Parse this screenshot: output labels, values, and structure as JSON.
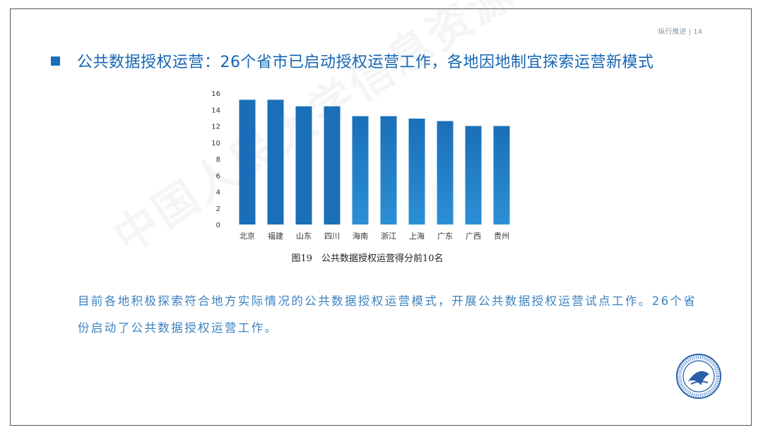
{
  "header": {
    "tag": "纵行推进 | 14"
  },
  "title": "公共数据授权运营：26个省市已启动授权运营工作，各地因地制宜探索运营新模式",
  "caption": "图19　公共数据授权运营得分前10名",
  "body_text": "目前各地积极探索符合地方实际情况的公共数据授权运营模式，开展公共数据授权运营试点工作。26个省份启动了公共数据授权运营工作。",
  "watermark": "中国人民大学信息资源管理学院",
  "colors": {
    "bar_top": "#1a6fb8",
    "bar_bottom": "#2c8fd6",
    "title": "#1565b3",
    "body": "#3b82c0"
  },
  "chart_data": {
    "type": "bar",
    "categories": [
      "北京",
      "福建",
      "山东",
      "四川",
      "海南",
      "浙江",
      "上海",
      "广东",
      "广西",
      "贵州"
    ],
    "values": [
      15.2,
      15.2,
      14.4,
      14.4,
      13.2,
      13.2,
      12.9,
      12.6,
      12.0,
      12.0
    ],
    "ylim": [
      0,
      16
    ],
    "yticks": [
      0,
      2,
      4,
      6,
      8,
      10,
      12,
      14,
      16
    ],
    "grid": false,
    "title": "",
    "xlabel": "",
    "ylabel": ""
  }
}
